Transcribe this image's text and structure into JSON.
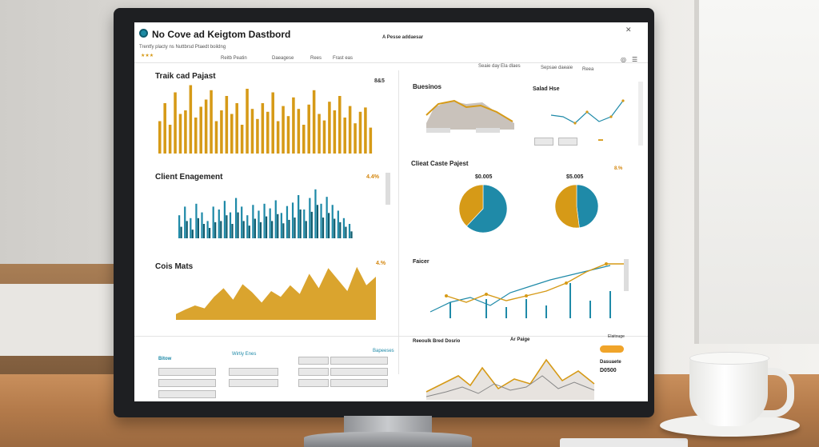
{
  "header": {
    "title": "No Cove ad Keigtom Dastbord",
    "center_label": "A Pesse addaesar",
    "subtitle": "Trentfy placty ns Nuttbrsd Ptaedt boildng",
    "stars": "★★★",
    "nav": [
      "Reitb Peatin",
      "Daeagese",
      "Rees",
      "Frast eas"
    ],
    "right_nav": [
      "Seaie day",
      "Ela dlaes",
      "Sepsae daeaie",
      "Reea"
    ]
  },
  "panels": {
    "tracked_projects": {
      "title": "Traik cad Pajast",
      "value": "8&5"
    },
    "business": {
      "title": "Buesinos"
    },
    "sales": {
      "title": "Salad Hse"
    },
    "client_engagement": {
      "title": "Client Enagement",
      "value": "4.4%"
    },
    "client_projects": {
      "title": "Clieat Caste Pajest",
      "left_value": "$0.005",
      "right_value": "$5.005",
      "badge": "8.%"
    },
    "costs": {
      "title": "Cois Mats",
      "value": "4.%"
    },
    "trend": {
      "title": "Faicer"
    },
    "bottom": {
      "col1": "Bitow",
      "col2": "Wirtiy Enes",
      "col3": "Bapeeses",
      "revenue": "Reeoulk Bred Dosrio",
      "ar": "Ar Paige",
      "chip": "Elaitouge",
      "status_label": "Dasuaete",
      "status_value": "D0500"
    }
  },
  "colors": {
    "orange": "#d69a17",
    "teal": "#1f8aa8",
    "grey": "#c9c2bb"
  },
  "chart_data": [
    {
      "type": "bar",
      "title": "Traik cad Pajast",
      "values": [
        45,
        70,
        40,
        85,
        55,
        60,
        95,
        50,
        65,
        75,
        88,
        45,
        60,
        80,
        55,
        70,
        40,
        90,
        62,
        48,
        70,
        58,
        85,
        45,
        66,
        52,
        78,
        62,
        40,
        68,
        88,
        55,
        46,
        72,
        60,
        80,
        50,
        66,
        42,
        58,
        64,
        36
      ],
      "ylim": [
        0,
        100
      ]
    },
    {
      "type": "bar",
      "title": "Client Enagement",
      "series": [
        {
          "name": "",
          "values": [
            40,
            55,
            35,
            60,
            45,
            30,
            55,
            50,
            65,
            45,
            70,
            55,
            40,
            58,
            48,
            60,
            52,
            66,
            44,
            56,
            62,
            75,
            50,
            70,
            85,
            60,
            72,
            58,
            48,
            35,
            25
          ]
        },
        {
          "name": "",
          "values": [
            20,
            30,
            15,
            35,
            25,
            18,
            28,
            30,
            40,
            25,
            45,
            30,
            22,
            34,
            28,
            38,
            30,
            42,
            26,
            32,
            36,
            50,
            30,
            46,
            58,
            36,
            44,
            34,
            28,
            20,
            12
          ]
        }
      ],
      "ylim": [
        0,
        100
      ]
    },
    {
      "type": "area",
      "title": "Cois Mats",
      "values": [
        10,
        18,
        25,
        20,
        40,
        55,
        35,
        62,
        48,
        30,
        50,
        40,
        60,
        45,
        80,
        55,
        90,
        70,
        50,
        92,
        60,
        75
      ],
      "ylim": [
        0,
        100
      ]
    },
    {
      "type": "pie",
      "title": "Clieat Caste Pajest",
      "values": [
        62,
        38
      ]
    },
    {
      "type": "pie",
      "title": "Clieat Caste Pajest",
      "values": [
        48,
        52
      ]
    }
  ]
}
